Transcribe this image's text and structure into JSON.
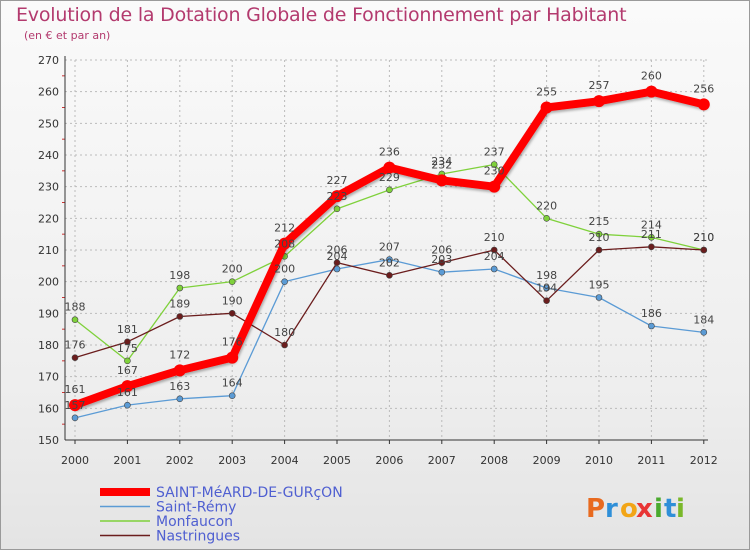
{
  "chart_data": {
    "type": "line",
    "title": "Evolution de la Dotation Globale de Fonctionnement par Habitant",
    "subtitle": "(en € et par an)",
    "xlabel": "",
    "ylabel": "",
    "x": [
      "2000",
      "2001",
      "2002",
      "2003",
      "2004",
      "2005",
      "2006",
      "2007",
      "2008",
      "2009",
      "2010",
      "2011",
      "2012"
    ],
    "ylim": [
      150,
      270
    ],
    "yticks": [
      150,
      160,
      170,
      180,
      190,
      200,
      210,
      220,
      230,
      240,
      250,
      260,
      270
    ],
    "grid": true,
    "series": [
      {
        "name": "Saint-Rémy",
        "color": "#5b9bd5",
        "values": [
          157,
          161,
          163,
          164,
          200,
          204,
          207,
          203,
          204,
          198,
          195,
          186,
          184
        ]
      },
      {
        "name": "Monfaucon",
        "color": "#7fd13b",
        "values": [
          188,
          175,
          198,
          200,
          208,
          223,
          229,
          234,
          237,
          220,
          215,
          214,
          210
        ]
      },
      {
        "name": "Nastringues",
        "color": "#6b1d1d",
        "values": [
          176,
          181,
          189,
          190,
          180,
          206,
          202,
          206,
          210,
          194,
          210,
          211,
          210
        ]
      },
      {
        "name": "SAINT-MéARD-DE-GURçON",
        "color": "#ff0000",
        "values": [
          161,
          167,
          172,
          176,
          212,
          227,
          236,
          232,
          230,
          255,
          257,
          260,
          256
        ]
      }
    ],
    "legend": [
      "SAINT-MéARD-DE-GURçON",
      "Saint-Rémy",
      "Monfaucon",
      "Nastringues"
    ],
    "legend_position": "bottom-left"
  },
  "brand": {
    "name": "Proxiti",
    "letters": [
      "P",
      "r",
      "o",
      "x",
      "i",
      "t",
      "i"
    ]
  },
  "colors": {
    "title": "#b33a6e",
    "grid": "#bbbbbb",
    "legend_text": "#4f5fd1"
  }
}
